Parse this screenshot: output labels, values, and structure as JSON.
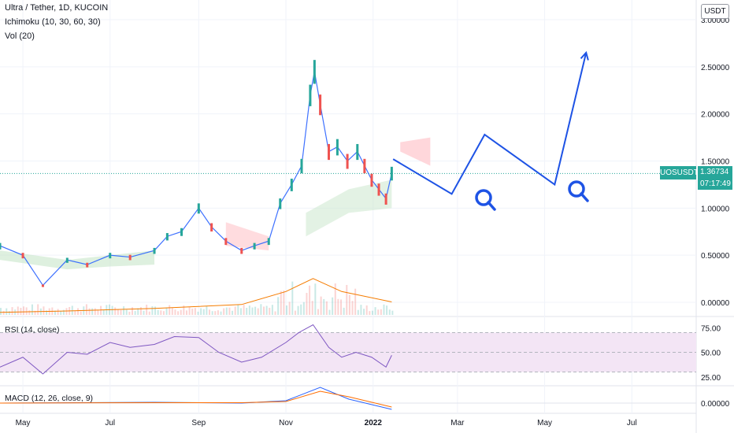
{
  "header": {
    "title": "Ultra / Tether, 1D, KUCOIN",
    "ichimoku": "Ichimoku (10, 30, 60, 30)",
    "volume": "Vol (20)"
  },
  "price_axis": {
    "unit": "USDT",
    "ticks": [
      "3.00000",
      "2.50000",
      "2.00000",
      "1.50000",
      "1.00000",
      "0.50000",
      "0.00000"
    ]
  },
  "last_price": {
    "symbol": "UOSUSDT",
    "price": "1.36734",
    "countdown": "07:17:49"
  },
  "rsi_pane": {
    "label": "RSI (14, close)",
    "ticks": [
      "75.00",
      "50.00",
      "25.00"
    ]
  },
  "macd_pane": {
    "label": "MACD (12, 26, close, 9)",
    "ticks": [
      "0.00000"
    ]
  },
  "time_axis": {
    "labels": [
      "May",
      "Jul",
      "Sep",
      "Nov",
      "2022",
      "Mar",
      "May",
      "Jul"
    ]
  },
  "colors": {
    "up": "#26a69a",
    "down": "#ef5350",
    "annotation": "#1e53e5",
    "cloud_green": "#c8e6c9",
    "cloud_red": "#ffcdd2",
    "volume_ma": "#f57c00",
    "rsi": "#7e57c2",
    "rsi_band": "#f3e5f5",
    "macd": "#2962ff",
    "macd_signal": "#ff6d00"
  },
  "annotations": {
    "projection_path": "blue-zigzag-arrow",
    "magnifier_icons": [
      "search-icon",
      "search-icon"
    ]
  },
  "chart_data": {
    "type": "line",
    "title": "Ultra / Tether, 1D, KUCOIN",
    "x_range": [
      "2021-04-15",
      "2022-08-15"
    ],
    "ylim": [
      0,
      3
    ],
    "price_series": {
      "name": "UOSUSDT",
      "dates": [
        "2021-04-15",
        "2021-05-01",
        "2021-05-15",
        "2021-06-01",
        "2021-06-15",
        "2021-07-01",
        "2021-07-15",
        "2021-08-01",
        "2021-08-10",
        "2021-08-20",
        "2021-09-01",
        "2021-09-10",
        "2021-09-20",
        "2021-10-01",
        "2021-10-10",
        "2021-10-20",
        "2021-10-28",
        "2021-11-05",
        "2021-11-12",
        "2021-11-18",
        "2021-11-21",
        "2021-11-25",
        "2021-12-01",
        "2021-12-07",
        "2021-12-14",
        "2021-12-21",
        "2021-12-26",
        "2021-12-31",
        "2022-01-05",
        "2022-01-10",
        "2022-01-14"
      ],
      "values": [
        0.6,
        0.5,
        0.18,
        0.45,
        0.4,
        0.5,
        0.48,
        0.55,
        0.7,
        0.75,
        1.0,
        0.8,
        0.65,
        0.55,
        0.6,
        0.65,
        1.05,
        1.25,
        1.45,
        2.2,
        2.45,
        2.1,
        1.6,
        1.65,
        1.5,
        1.6,
        1.45,
        1.3,
        1.2,
        1.1,
        1.37
      ]
    },
    "projection": {
      "dates": [
        "2022-01-15",
        "2022-02-25",
        "2022-03-20",
        "2022-05-08",
        "2022-05-30"
      ],
      "values": [
        1.52,
        1.15,
        1.78,
        1.25,
        2.65
      ]
    },
    "rsi": {
      "ylim": [
        20,
        80
      ],
      "dates": [
        "2021-04-15",
        "2021-05-01",
        "2021-05-15",
        "2021-06-01",
        "2021-06-15",
        "2021-07-01",
        "2021-07-15",
        "2021-08-01",
        "2021-08-15",
        "2021-09-01",
        "2021-09-15",
        "2021-10-01",
        "2021-10-15",
        "2021-11-01",
        "2021-11-10",
        "2021-11-20",
        "2021-12-01",
        "2021-12-10",
        "2021-12-20",
        "2021-12-31",
        "2022-01-10",
        "2022-01-14"
      ],
      "values": [
        35,
        45,
        28,
        50,
        48,
        60,
        55,
        58,
        66,
        65,
        50,
        40,
        45,
        60,
        70,
        78,
        55,
        45,
        50,
        45,
        35,
        47
      ]
    },
    "volume_ma": {
      "dates": [
        "2021-04-15",
        "2021-06-01",
        "2021-08-01",
        "2021-10-01",
        "2021-11-01",
        "2021-11-20",
        "2021-12-10",
        "2022-01-14"
      ],
      "values": [
        1,
        1.5,
        2.5,
        4,
        9,
        14,
        9,
        5
      ]
    }
  }
}
